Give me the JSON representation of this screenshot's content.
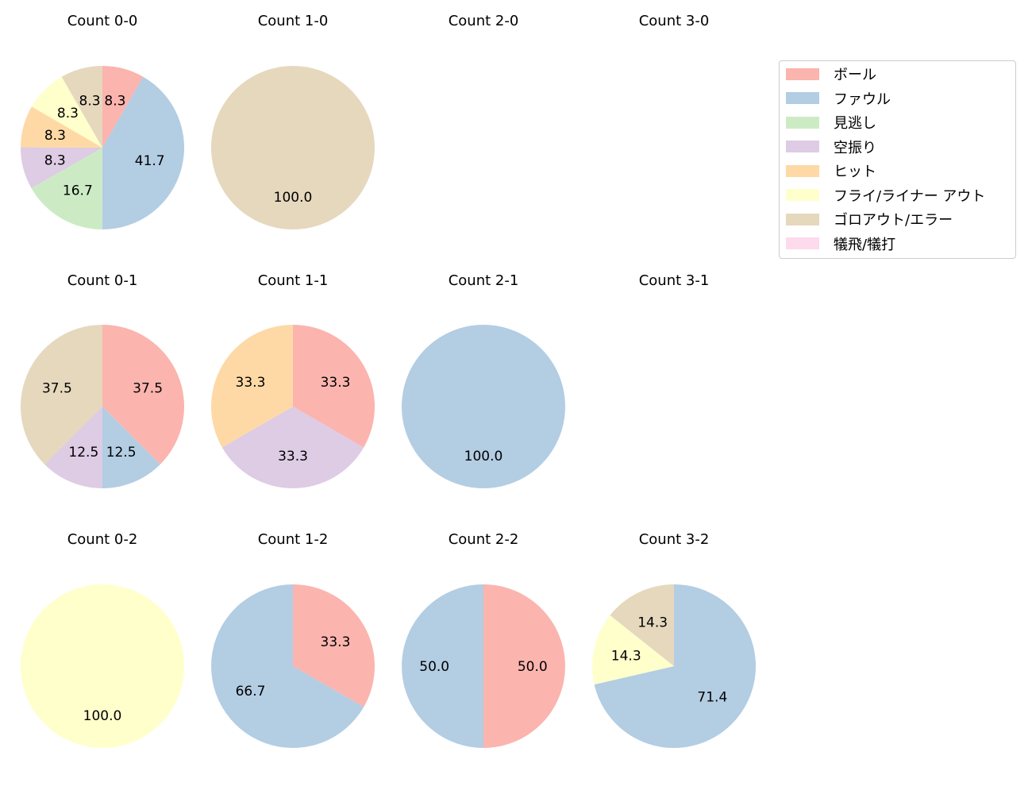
{
  "legend": {
    "items": [
      {
        "label": "ボール",
        "color": "#fbb4ae"
      },
      {
        "label": "ファウル",
        "color": "#b3cde3"
      },
      {
        "label": "見逃し",
        "color": "#ccebc5"
      },
      {
        "label": "空振り",
        "color": "#decbe4"
      },
      {
        "label": "ヒット",
        "color": "#fed9a6"
      },
      {
        "label": "フライ/ライナー アウト",
        "color": "#ffffcc"
      },
      {
        "label": "ゴロアウト/エラー",
        "color": "#e5d8bd"
      },
      {
        "label": "犠飛/犠打",
        "color": "#fddaec"
      }
    ]
  },
  "chart_data": [
    {
      "type": "pie",
      "title": "Count 0-0",
      "col": 0,
      "row": 0,
      "labels": [
        "ボール",
        "ファウル",
        "見逃し",
        "空振り",
        "ヒット",
        "フライ/ライナー アウト",
        "ゴロアウト/エラー"
      ],
      "values": [
        8.3,
        41.7,
        16.7,
        8.3,
        8.3,
        8.3,
        8.3
      ]
    },
    {
      "type": "pie",
      "title": "Count 1-0",
      "col": 1,
      "row": 0,
      "labels": [
        "ゴロアウト/エラー"
      ],
      "values": [
        100.0
      ]
    },
    {
      "type": "pie",
      "title": "Count 2-0",
      "col": 2,
      "row": 0,
      "labels": [],
      "values": []
    },
    {
      "type": "pie",
      "title": "Count 3-0",
      "col": 3,
      "row": 0,
      "labels": [],
      "values": []
    },
    {
      "type": "pie",
      "title": "Count 0-1",
      "col": 0,
      "row": 1,
      "labels": [
        "ボール",
        "ファウル",
        "空振り",
        "ゴロアウト/エラー"
      ],
      "values": [
        37.5,
        12.5,
        12.5,
        37.5
      ]
    },
    {
      "type": "pie",
      "title": "Count 1-1",
      "col": 1,
      "row": 1,
      "labels": [
        "ボール",
        "空振り",
        "ヒット"
      ],
      "values": [
        33.3,
        33.3,
        33.3
      ]
    },
    {
      "type": "pie",
      "title": "Count 2-1",
      "col": 2,
      "row": 1,
      "labels": [
        "ファウル"
      ],
      "values": [
        100.0
      ]
    },
    {
      "type": "pie",
      "title": "Count 3-1",
      "col": 3,
      "row": 1,
      "labels": [],
      "values": []
    },
    {
      "type": "pie",
      "title": "Count 0-2",
      "col": 0,
      "row": 2,
      "labels": [
        "フライ/ライナー アウト"
      ],
      "values": [
        100.0
      ]
    },
    {
      "type": "pie",
      "title": "Count 1-2",
      "col": 1,
      "row": 2,
      "labels": [
        "ボール",
        "ファウル"
      ],
      "values": [
        33.3,
        66.7
      ]
    },
    {
      "type": "pie",
      "title": "Count 2-2",
      "col": 2,
      "row": 2,
      "labels": [
        "ボール",
        "ファウル"
      ],
      "values": [
        50.0,
        50.0
      ]
    },
    {
      "type": "pie",
      "title": "Count 3-2",
      "col": 3,
      "row": 2,
      "labels": [
        "ファウル",
        "フライ/ライナー アウト",
        "ゴロアウト/エラー"
      ],
      "values": [
        71.4,
        14.3,
        14.3
      ]
    }
  ]
}
